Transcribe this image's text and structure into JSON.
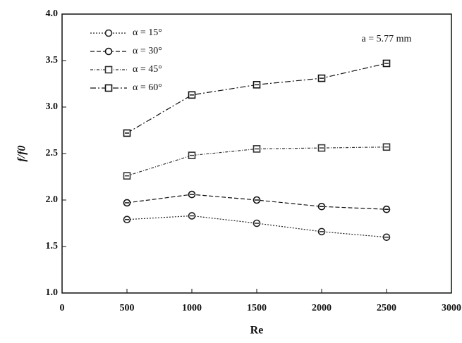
{
  "chart_data": {
    "type": "line",
    "x_label": "Re",
    "y_label": "f/f0",
    "annotation": "a = 5.77 mm",
    "x": [
      500,
      1000,
      1500,
      2000,
      2500
    ],
    "series": [
      {
        "name": "α = 15°",
        "color": "#222222",
        "marker": "circle",
        "values": [
          1.79,
          1.83,
          1.75,
          1.66,
          1.6
        ]
      },
      {
        "name": "α = 30°",
        "color": "#111111",
        "marker": "circle",
        "values": [
          1.97,
          2.06,
          2.0,
          1.93,
          1.9
        ]
      },
      {
        "name": "α = 45°",
        "color": "#333333",
        "marker": "square",
        "values": [
          2.26,
          2.48,
          2.55,
          2.56,
          2.57
        ]
      },
      {
        "name": "α = 60°",
        "color": "#111111",
        "marker": "square",
        "values": [
          2.72,
          3.13,
          3.24,
          3.31,
          3.47
        ]
      }
    ],
    "xlim": [
      0,
      3000
    ],
    "xticks": [
      0,
      500,
      1000,
      1500,
      2000,
      2500,
      3000
    ],
    "ylim": [
      1,
      4
    ],
    "yticks": [
      {
        "value": 1,
        "label": "1.0"
      },
      1.5,
      {
        "value": 2,
        "label": "2.0"
      },
      2.5,
      {
        "value": 3,
        "label": "3.0"
      },
      3.5,
      {
        "value": 4,
        "label": "4.0"
      }
    ],
    "grid": false
  }
}
